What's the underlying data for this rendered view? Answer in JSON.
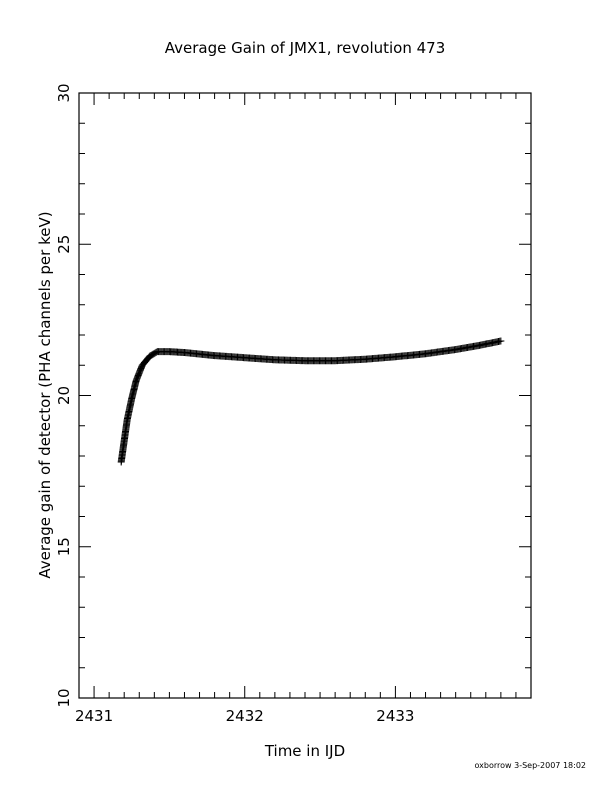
{
  "chart_data": {
    "type": "scatter",
    "title": "Average Gain of JMX1, revolution 473",
    "xlabel": "Time in IJD",
    "ylabel": "Average gain of detector (PHA channels per keV)",
    "xlim": [
      2430.9,
      2433.9
    ],
    "ylim": [
      10,
      30
    ],
    "xticks": [
      2431,
      2432,
      2433
    ],
    "yticks": [
      10,
      15,
      20,
      25,
      30
    ],
    "marker": "plus",
    "grid": false,
    "curve_points": [
      [
        2431.18,
        17.8
      ],
      [
        2431.2,
        18.5
      ],
      [
        2431.22,
        19.2
      ],
      [
        2431.25,
        19.9
      ],
      [
        2431.28,
        20.5
      ],
      [
        2431.32,
        21.0
      ],
      [
        2431.37,
        21.3
      ],
      [
        2431.42,
        21.45
      ],
      [
        2431.5,
        21.45
      ],
      [
        2431.6,
        21.42
      ],
      [
        2431.8,
        21.32
      ],
      [
        2432.0,
        21.25
      ],
      [
        2432.2,
        21.18
      ],
      [
        2432.4,
        21.15
      ],
      [
        2432.6,
        21.15
      ],
      [
        2432.8,
        21.2
      ],
      [
        2433.0,
        21.28
      ],
      [
        2433.2,
        21.38
      ],
      [
        2433.4,
        21.52
      ],
      [
        2433.55,
        21.65
      ],
      [
        2433.7,
        21.8
      ]
    ]
  },
  "footer": {
    "credit": "oxborrow  3-Sep-2007 18:02"
  }
}
